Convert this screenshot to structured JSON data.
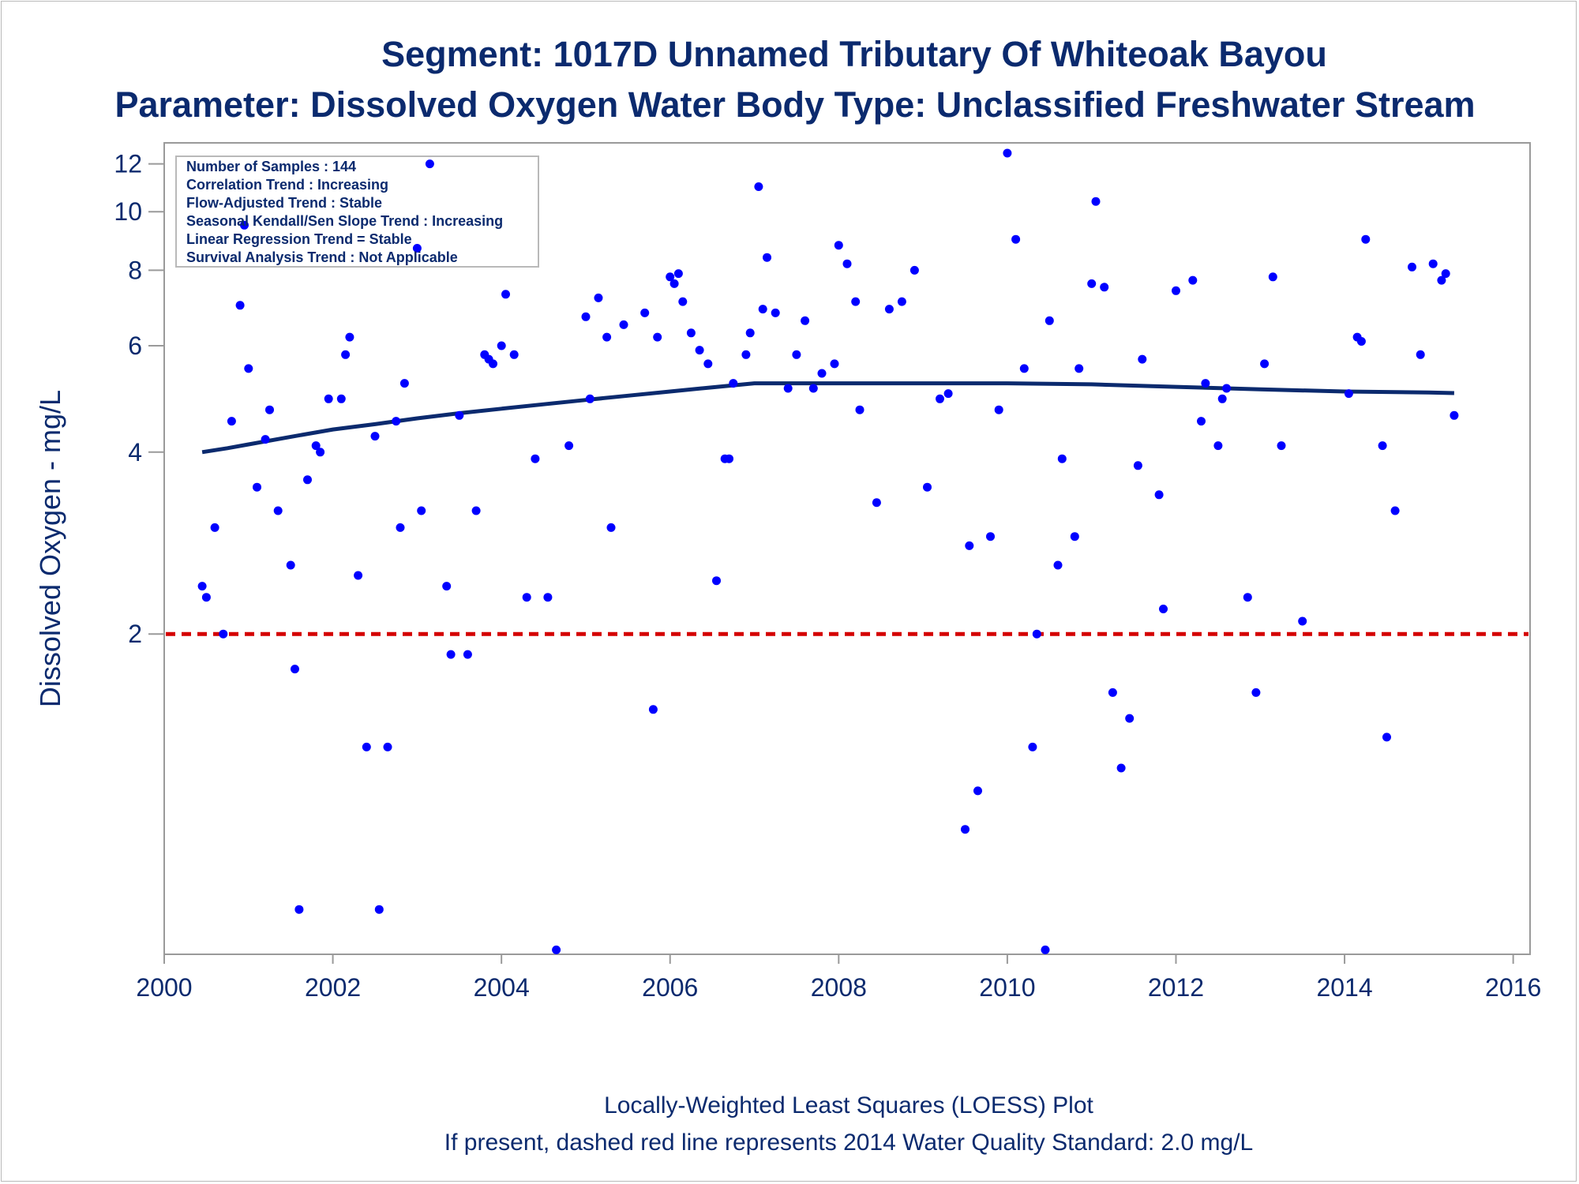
{
  "colors": {
    "text": "#0b2a6e",
    "points": "#0000ff",
    "trend": "#0b2a6e",
    "standard": "#d40000",
    "axis": "#9a9a9a"
  },
  "chart_data": {
    "type": "scatter",
    "title": "Segment: 1017D  Unnamed Tributary Of Whiteoak Bayou",
    "subtitle": "Parameter: Dissolved Oxygen   Water Body Type: Unclassified Freshwater Stream",
    "ylabel": "Dissolved Oxygen - mg/L",
    "xlabel": "",
    "y_scale": "log",
    "xlim": [
      2000,
      2016.2
    ],
    "ylim": [
      0.59,
      13
    ],
    "xticks": [
      2000,
      2002,
      2004,
      2006,
      2008,
      2010,
      2012,
      2014,
      2016
    ],
    "xtick_labels": [
      "2000",
      "2002",
      "2004",
      "2006",
      "2008",
      "2010",
      "2012",
      "2014",
      "2016"
    ],
    "yticks": [
      2,
      4,
      6,
      8,
      10,
      12
    ],
    "ytick_labels": [
      "2",
      "4",
      "6",
      "8",
      "10",
      "12"
    ],
    "grid": false,
    "stats_box": {
      "lines": [
        "Number of Samples : 144",
        "Correlation Trend : Increasing",
        "Flow-Adjusted Trend : Stable",
        "Seasonal Kendall/Sen Slope Trend : Increasing",
        "Linear Regression Trend = Stable",
        "Survival Analysis Trend : Not Applicable"
      ],
      "placement": "top-left"
    },
    "standard_line": {
      "y": 2.0
    },
    "footnotes": [
      "Locally-Weighted Least Squares (LOESS) Plot",
      "If present, dashed red line represents 2014 Water Quality Standard: 2.0 mg/L"
    ],
    "series": [
      {
        "kind": "points",
        "points": [
          [
            2000.45,
            2.4
          ],
          [
            2000.5,
            2.3
          ],
          [
            2000.6,
            3.0
          ],
          [
            2000.7,
            2.0
          ],
          [
            2000.8,
            4.5
          ],
          [
            2000.9,
            7.0
          ],
          [
            2000.95,
            9.5
          ],
          [
            2001.0,
            5.5
          ],
          [
            2001.1,
            3.5
          ],
          [
            2001.2,
            4.2
          ],
          [
            2001.25,
            4.7
          ],
          [
            2001.35,
            3.2
          ],
          [
            2001.5,
            2.6
          ],
          [
            2001.55,
            1.75
          ],
          [
            2001.6,
            0.7
          ],
          [
            2001.7,
            3.6
          ],
          [
            2001.8,
            4.1
          ],
          [
            2001.85,
            4.0
          ],
          [
            2001.95,
            4.9
          ],
          [
            2002.1,
            4.9
          ],
          [
            2002.15,
            5.8
          ],
          [
            2002.2,
            6.2
          ],
          [
            2002.3,
            2.5
          ],
          [
            2002.4,
            1.3
          ],
          [
            2002.5,
            4.25
          ],
          [
            2002.55,
            0.7
          ],
          [
            2002.65,
            1.3
          ],
          [
            2002.75,
            4.5
          ],
          [
            2002.8,
            3.0
          ],
          [
            2002.85,
            5.2
          ],
          [
            2003.0,
            8.7
          ],
          [
            2003.05,
            3.2
          ],
          [
            2003.15,
            12.0
          ],
          [
            2003.35,
            2.4
          ],
          [
            2003.4,
            1.85
          ],
          [
            2003.5,
            4.6
          ],
          [
            2003.6,
            1.85
          ],
          [
            2003.7,
            3.2
          ],
          [
            2003.8,
            5.8
          ],
          [
            2003.85,
            5.7
          ],
          [
            2003.9,
            5.6
          ],
          [
            2004.0,
            6.0
          ],
          [
            2004.05,
            7.3
          ],
          [
            2004.15,
            5.8
          ],
          [
            2004.3,
            2.3
          ],
          [
            2004.4,
            3.9
          ],
          [
            2004.55,
            2.3
          ],
          [
            2004.65,
            0.6
          ],
          [
            2004.8,
            4.1
          ],
          [
            2005.0,
            6.7
          ],
          [
            2005.05,
            4.9
          ],
          [
            2005.15,
            7.2
          ],
          [
            2005.25,
            6.2
          ],
          [
            2005.3,
            3.0
          ],
          [
            2005.45,
            6.5
          ],
          [
            2005.7,
            6.8
          ],
          [
            2005.8,
            1.5
          ],
          [
            2005.85,
            6.2
          ],
          [
            2006.0,
            7.8
          ],
          [
            2006.05,
            7.6
          ],
          [
            2006.1,
            7.9
          ],
          [
            2006.15,
            7.1
          ],
          [
            2006.25,
            6.3
          ],
          [
            2006.35,
            5.9
          ],
          [
            2006.45,
            5.6
          ],
          [
            2006.55,
            2.45
          ],
          [
            2006.65,
            3.9
          ],
          [
            2006.7,
            3.9
          ],
          [
            2006.75,
            5.2
          ],
          [
            2006.9,
            5.8
          ],
          [
            2006.95,
            6.3
          ],
          [
            2007.05,
            11.0
          ],
          [
            2007.1,
            6.9
          ],
          [
            2007.15,
            8.4
          ],
          [
            2007.25,
            6.8
          ],
          [
            2007.4,
            5.1
          ],
          [
            2007.5,
            5.8
          ],
          [
            2007.6,
            6.6
          ],
          [
            2007.7,
            5.1
          ],
          [
            2007.8,
            5.4
          ],
          [
            2007.95,
            5.6
          ],
          [
            2008.0,
            8.8
          ],
          [
            2008.1,
            8.2
          ],
          [
            2008.2,
            7.1
          ],
          [
            2008.25,
            4.7
          ],
          [
            2008.45,
            3.3
          ],
          [
            2008.6,
            6.9
          ],
          [
            2008.75,
            7.1
          ],
          [
            2008.9,
            8.0
          ],
          [
            2009.05,
            3.5
          ],
          [
            2009.2,
            4.9
          ],
          [
            2009.3,
            5.0
          ],
          [
            2009.5,
            0.95
          ],
          [
            2009.55,
            2.8
          ],
          [
            2009.65,
            1.1
          ],
          [
            2009.8,
            2.9
          ],
          [
            2009.9,
            4.7
          ],
          [
            2010.0,
            12.5
          ],
          [
            2010.1,
            9.0
          ],
          [
            2010.2,
            5.5
          ],
          [
            2010.3,
            1.3
          ],
          [
            2010.35,
            2.0
          ],
          [
            2010.45,
            0.6
          ],
          [
            2010.5,
            6.6
          ],
          [
            2010.6,
            2.6
          ],
          [
            2010.65,
            3.9
          ],
          [
            2010.8,
            2.9
          ],
          [
            2010.85,
            5.5
          ],
          [
            2011.0,
            7.6
          ],
          [
            2011.05,
            10.4
          ],
          [
            2011.15,
            7.5
          ],
          [
            2011.25,
            1.6
          ],
          [
            2011.35,
            1.2
          ],
          [
            2011.45,
            1.45
          ],
          [
            2011.55,
            3.8
          ],
          [
            2011.6,
            5.7
          ],
          [
            2011.8,
            3.4
          ],
          [
            2011.85,
            2.2
          ],
          [
            2012.0,
            7.4
          ],
          [
            2012.2,
            7.7
          ],
          [
            2012.3,
            4.5
          ],
          [
            2012.35,
            5.2
          ],
          [
            2012.5,
            4.1
          ],
          [
            2012.55,
            4.9
          ],
          [
            2012.6,
            5.1
          ],
          [
            2012.85,
            2.3
          ],
          [
            2012.95,
            1.6
          ],
          [
            2013.05,
            5.6
          ],
          [
            2013.15,
            7.8
          ],
          [
            2013.25,
            4.1
          ],
          [
            2013.5,
            2.1
          ],
          [
            2014.05,
            5.0
          ],
          [
            2014.15,
            6.2
          ],
          [
            2014.2,
            6.1
          ],
          [
            2014.25,
            9.0
          ],
          [
            2014.45,
            4.1
          ],
          [
            2014.5,
            1.35
          ],
          [
            2014.6,
            3.2
          ],
          [
            2014.8,
            8.1
          ],
          [
            2014.9,
            5.8
          ],
          [
            2015.05,
            8.2
          ],
          [
            2015.15,
            7.7
          ],
          [
            2015.2,
            7.9
          ],
          [
            2015.3,
            4.6
          ]
        ]
      },
      {
        "kind": "loess",
        "points": [
          [
            2000.45,
            4.0
          ],
          [
            2000.75,
            4.06
          ],
          [
            2001.0,
            4.12
          ],
          [
            2001.5,
            4.24
          ],
          [
            2002.0,
            4.36
          ],
          [
            2002.5,
            4.45
          ],
          [
            2003.0,
            4.55
          ],
          [
            2003.5,
            4.64
          ],
          [
            2004.0,
            4.72
          ],
          [
            2004.5,
            4.8
          ],
          [
            2005.0,
            4.88
          ],
          [
            2005.5,
            4.96
          ],
          [
            2006.0,
            5.04
          ],
          [
            2006.5,
            5.12
          ],
          [
            2007.0,
            5.2
          ],
          [
            2007.5,
            5.2
          ],
          [
            2008.0,
            5.2
          ],
          [
            2009.0,
            5.2
          ],
          [
            2010.0,
            5.2
          ],
          [
            2011.0,
            5.18
          ],
          [
            2012.0,
            5.13
          ],
          [
            2013.0,
            5.08
          ],
          [
            2014.0,
            5.04
          ],
          [
            2015.0,
            5.02
          ],
          [
            2015.3,
            5.01
          ]
        ]
      }
    ]
  }
}
